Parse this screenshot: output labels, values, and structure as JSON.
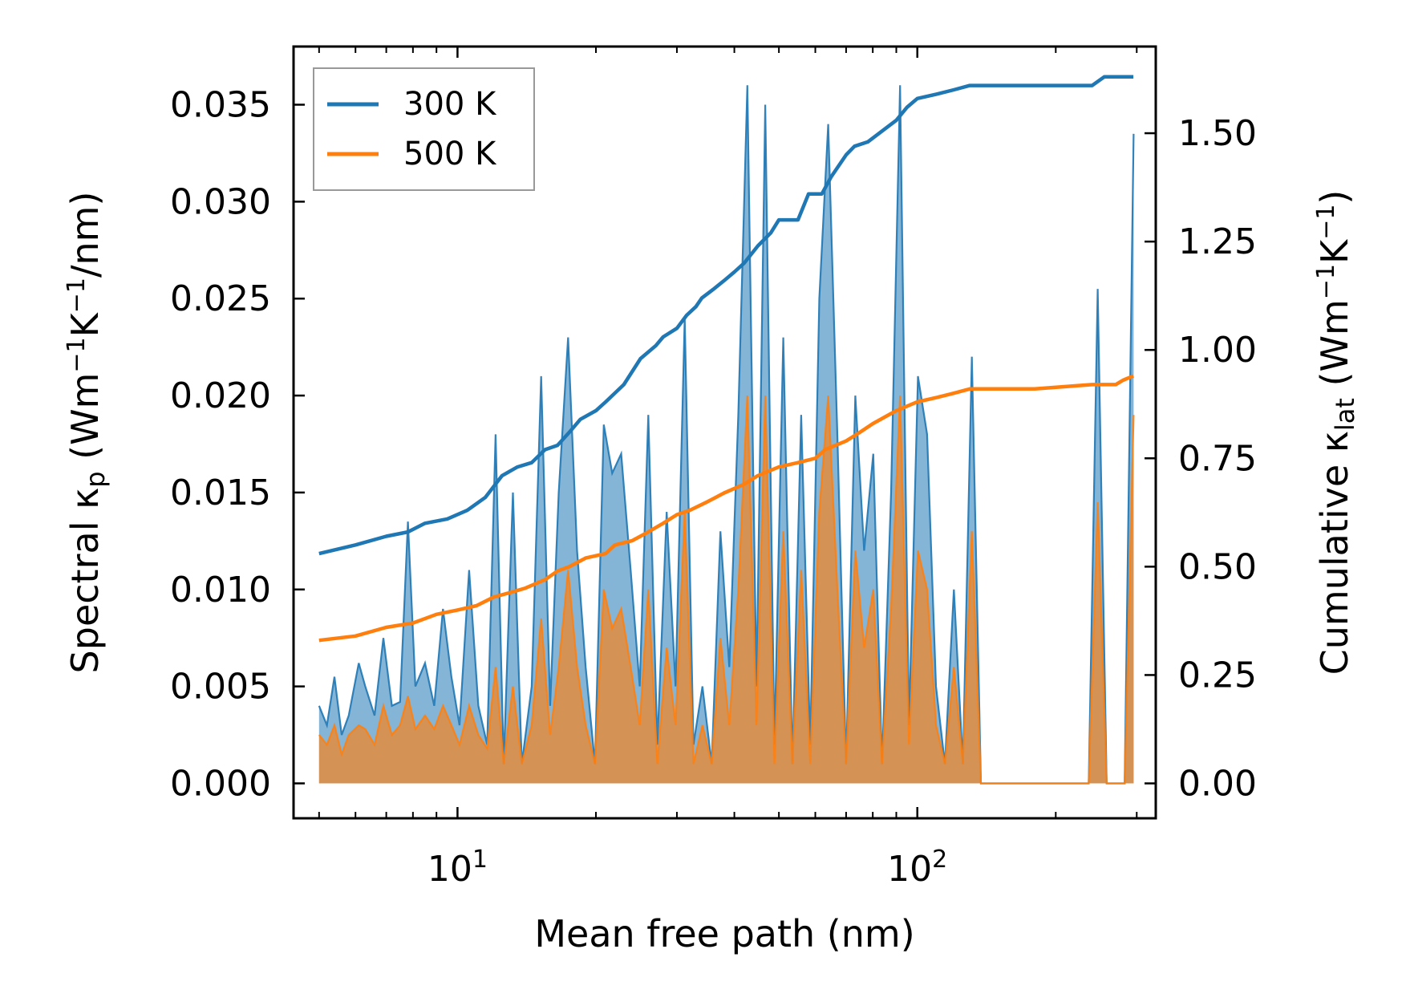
{
  "chart_data": {
    "type": "line",
    "xscale": "log",
    "xlabel": "Mean free path (nm)",
    "ylabel_left_main": "Spectral κ",
    "ylabel_left_sub": "p",
    "ylabel_left_rest": " (Wm",
    "ylabel_left_sup1": "−1",
    "ylabel_left_mid": "K",
    "ylabel_left_sup2": "−1",
    "ylabel_left_end": "/nm)",
    "ylabel_right_main": "Cumulative κ",
    "ylabel_right_sub": "lat",
    "ylabel_right_rest": " (Wm",
    "ylabel_right_sup1": "−1",
    "ylabel_right_mid": "K",
    "ylabel_right_sup2": "−1",
    "ylabel_right_end": ")",
    "xlim": [
      4.4,
      330
    ],
    "ylim_left": [
      -0.0018,
      0.038
    ],
    "ylim_right": [
      -0.0805,
      1.7
    ],
    "x_ticks": [
      10,
      100
    ],
    "x_tick_labels_base": [
      "10",
      "10"
    ],
    "x_tick_labels_exp": [
      "1",
      "2"
    ],
    "y_left_ticks": [
      0.0,
      0.005,
      0.01,
      0.015,
      0.02,
      0.025,
      0.03,
      0.035
    ],
    "y_left_tick_labels": [
      "0.000",
      "0.005",
      "0.010",
      "0.015",
      "0.020",
      "0.025",
      "0.030",
      "0.035"
    ],
    "y_right_ticks": [
      0.0,
      0.25,
      0.5,
      0.75,
      1.0,
      1.25,
      1.5
    ],
    "y_right_tick_labels": [
      "0.00",
      "0.25",
      "0.50",
      "0.75",
      "1.00",
      "1.25",
      "1.50"
    ],
    "legend": {
      "position": "top-left",
      "entries": [
        "300 K",
        "500 K"
      ]
    },
    "colors": {
      "300 K": "#1f77b4",
      "500 K": "#ff7f0e"
    },
    "spectral": [
      {
        "name": "300 K",
        "x": [
          5.0,
          5.2,
          5.4,
          5.6,
          5.8,
          6.1,
          6.3,
          6.6,
          6.9,
          7.2,
          7.5,
          7.8,
          8.1,
          8.5,
          8.9,
          9.3,
          9.7,
          10.1,
          10.6,
          11.1,
          11.6,
          12.1,
          12.6,
          13.2,
          13.8,
          14.5,
          15.2,
          15.9,
          16.6,
          17.4,
          18.2,
          19.0,
          19.9,
          20.8,
          21.7,
          22.7,
          23.8,
          24.9,
          26.0,
          27.2,
          28.5,
          29.8,
          31.2,
          32.6,
          34.1,
          35.7,
          37.3,
          39.0,
          40.8,
          42.7,
          44.7,
          46.7,
          48.9,
          51.1,
          53.5,
          55.9,
          58.5,
          61.2,
          64.0,
          67.0,
          70.0,
          73.3,
          76.6,
          80.2,
          83.8,
          87.7,
          91.7,
          95.9,
          100.3,
          105.0,
          109.8,
          114.8,
          120.1,
          125.6,
          131.4,
          137.5,
          143.8,
          150.4,
          157.3,
          164.6,
          172.1,
          180.1,
          188.4,
          197.0,
          206.1,
          215.6,
          225.5,
          235.9,
          246.7,
          258.1,
          270.0,
          282.4,
          295.4
        ],
        "values": [
          0.004,
          0.003,
          0.0055,
          0.0025,
          0.0035,
          0.0062,
          0.005,
          0.0035,
          0.0075,
          0.004,
          0.0042,
          0.0135,
          0.005,
          0.0062,
          0.004,
          0.009,
          0.0055,
          0.003,
          0.011,
          0.004,
          0.002,
          0.018,
          0.001,
          0.015,
          0.001,
          0.005,
          0.021,
          0.004,
          0.015,
          0.023,
          0.012,
          0.006,
          0.001,
          0.0185,
          0.016,
          0.017,
          0.011,
          0.005,
          0.019,
          0.002,
          0.014,
          0.005,
          0.024,
          0.002,
          0.005,
          0.001,
          0.013,
          0.006,
          0.019,
          0.036,
          0.005,
          0.035,
          0.002,
          0.023,
          0.001,
          0.019,
          0.002,
          0.025,
          0.034,
          0.018,
          0.001,
          0.02,
          0.012,
          0.017,
          0.001,
          0.015,
          0.036,
          0.003,
          0.021,
          0.018,
          0.005,
          0.001,
          0.01,
          0.001,
          0.022,
          0.0,
          0.0,
          0.0,
          0.0,
          0.0,
          0.0,
          0.0,
          0.0,
          0.0,
          0.0,
          0.0,
          0.0,
          0.0,
          0.0255,
          0.0,
          0.0,
          0.0,
          0.0335
        ]
      },
      {
        "name": "500 K",
        "x": [
          5.0,
          5.2,
          5.4,
          5.6,
          5.8,
          6.1,
          6.3,
          6.6,
          6.9,
          7.2,
          7.5,
          7.8,
          8.1,
          8.5,
          8.9,
          9.3,
          9.7,
          10.1,
          10.6,
          11.1,
          11.6,
          12.1,
          12.6,
          13.2,
          13.8,
          14.5,
          15.2,
          15.9,
          16.6,
          17.4,
          18.2,
          19.0,
          19.9,
          20.8,
          21.7,
          22.7,
          23.8,
          24.9,
          26.0,
          27.2,
          28.5,
          29.8,
          31.2,
          32.6,
          34.1,
          35.7,
          37.3,
          39.0,
          40.8,
          42.7,
          44.7,
          46.7,
          48.9,
          51.1,
          53.5,
          55.9,
          58.5,
          61.2,
          64.0,
          67.0,
          70.0,
          73.3,
          76.6,
          80.2,
          83.8,
          87.7,
          91.7,
          95.9,
          100.3,
          105.0,
          109.8,
          114.8,
          120.1,
          125.6,
          131.4,
          137.5,
          143.8,
          150.4,
          157.3,
          164.6,
          172.1,
          180.1,
          188.4,
          197.0,
          206.1,
          215.6,
          225.5,
          235.9,
          246.7,
          258.1,
          270.0,
          282.4,
          295.4
        ],
        "values": [
          0.0025,
          0.002,
          0.003,
          0.0015,
          0.0025,
          0.003,
          0.0028,
          0.002,
          0.004,
          0.0025,
          0.003,
          0.0045,
          0.0028,
          0.0035,
          0.0028,
          0.004,
          0.003,
          0.002,
          0.004,
          0.0025,
          0.0018,
          0.006,
          0.001,
          0.005,
          0.001,
          0.003,
          0.0085,
          0.0025,
          0.006,
          0.011,
          0.006,
          0.003,
          0.001,
          0.01,
          0.008,
          0.009,
          0.006,
          0.003,
          0.01,
          0.001,
          0.007,
          0.003,
          0.014,
          0.001,
          0.003,
          0.001,
          0.0075,
          0.003,
          0.01,
          0.02,
          0.003,
          0.02,
          0.001,
          0.013,
          0.001,
          0.011,
          0.001,
          0.014,
          0.02,
          0.01,
          0.001,
          0.012,
          0.007,
          0.01,
          0.001,
          0.009,
          0.02,
          0.002,
          0.012,
          0.01,
          0.003,
          0.001,
          0.006,
          0.001,
          0.013,
          0.0,
          0.0,
          0.0,
          0.0,
          0.0,
          0.0,
          0.0,
          0.0,
          0.0,
          0.0,
          0.0,
          0.0,
          0.0,
          0.0145,
          0.0,
          0.0,
          0.0,
          0.019
        ]
      }
    ],
    "cumulative": [
      {
        "name": "300 K",
        "x": [
          5.0,
          6.0,
          7.0,
          7.8,
          8.5,
          9.5,
          10.5,
          11.5,
          12.5,
          13.5,
          14.5,
          15.5,
          16.5,
          17.5,
          18.5,
          20.0,
          21.0,
          23.0,
          25.0,
          27.0,
          28.0,
          30.0,
          31.5,
          33.0,
          34.0,
          36.0,
          38.0,
          40.0,
          42.0,
          45.0,
          48.0,
          50.0,
          55.0,
          58.0,
          62.0,
          65.0,
          70.0,
          73.0,
          78.0,
          85.0,
          90.0,
          95.0,
          100.0,
          110.0,
          120.0,
          130.0,
          140.0,
          180.0,
          240.0,
          255.0,
          270.0,
          280.0,
          295.0
        ],
        "values": [
          0.53,
          0.55,
          0.57,
          0.58,
          0.6,
          0.61,
          0.63,
          0.66,
          0.71,
          0.73,
          0.74,
          0.77,
          0.78,
          0.81,
          0.84,
          0.86,
          0.88,
          0.92,
          0.98,
          1.01,
          1.03,
          1.05,
          1.08,
          1.1,
          1.12,
          1.14,
          1.16,
          1.18,
          1.2,
          1.24,
          1.27,
          1.3,
          1.3,
          1.36,
          1.36,
          1.4,
          1.45,
          1.47,
          1.48,
          1.51,
          1.53,
          1.56,
          1.58,
          1.59,
          1.6,
          1.61,
          1.61,
          1.61,
          1.61,
          1.63,
          1.63,
          1.63,
          1.63
        ]
      },
      {
        "name": "500 K",
        "x": [
          5.0,
          6.0,
          7.0,
          8.0,
          9.0,
          10.0,
          11.0,
          12.0,
          13.0,
          14.0,
          15.5,
          16.5,
          17.5,
          19.0,
          21.0,
          22.0,
          24.0,
          26.0,
          28.0,
          30.0,
          32.0,
          35.0,
          38.0,
          42.0,
          45.0,
          50.0,
          55.0,
          60.0,
          63.0,
          70.0,
          75.0,
          80.0,
          90.0,
          100.0,
          110.0,
          120.0,
          130.0,
          140.0,
          180.0,
          240.0,
          255.0,
          270.0,
          280.0,
          295.0
        ],
        "values": [
          0.33,
          0.34,
          0.36,
          0.37,
          0.39,
          0.4,
          0.41,
          0.43,
          0.44,
          0.45,
          0.47,
          0.49,
          0.5,
          0.52,
          0.53,
          0.55,
          0.56,
          0.58,
          0.6,
          0.62,
          0.63,
          0.65,
          0.67,
          0.69,
          0.71,
          0.73,
          0.74,
          0.75,
          0.77,
          0.79,
          0.81,
          0.83,
          0.86,
          0.88,
          0.89,
          0.9,
          0.91,
          0.91,
          0.91,
          0.92,
          0.92,
          0.92,
          0.93,
          0.94
        ]
      }
    ]
  }
}
